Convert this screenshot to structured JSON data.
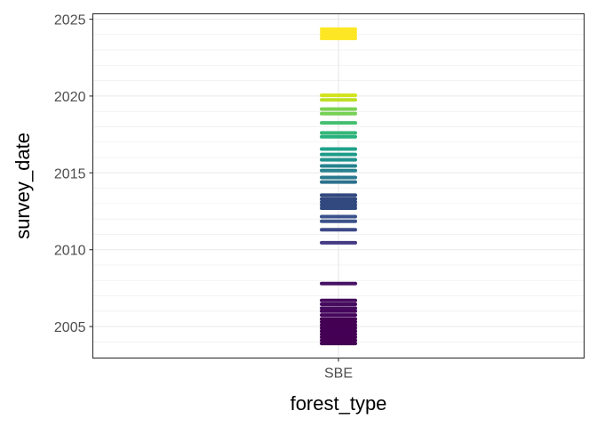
{
  "chart_data": {
    "type": "scatter",
    "title": "",
    "xlabel": "forest_type",
    "ylabel": "survey_date",
    "categories": [
      "SBE"
    ],
    "yticks": [
      2005,
      2010,
      2015,
      2020,
      2025
    ],
    "ylim": [
      2002.95,
      2025.35
    ],
    "grid": true,
    "legend": "none",
    "colormap": "viridis",
    "points": [
      {
        "x": "SBE",
        "y": 2003.9,
        "color": "#440154"
      },
      {
        "x": "SBE",
        "y": 2004.1,
        "color": "#440154"
      },
      {
        "x": "SBE",
        "y": 2004.3,
        "color": "#440154"
      },
      {
        "x": "SBE",
        "y": 2004.5,
        "color": "#440154"
      },
      {
        "x": "SBE",
        "y": 2004.7,
        "color": "#440154"
      },
      {
        "x": "SBE",
        "y": 2004.9,
        "color": "#440154"
      },
      {
        "x": "SBE",
        "y": 2005.1,
        "color": "#440154"
      },
      {
        "x": "SBE",
        "y": 2005.3,
        "color": "#440154"
      },
      {
        "x": "SBE",
        "y": 2005.5,
        "color": "#440154"
      },
      {
        "x": "SBE",
        "y": 2005.75,
        "color": "#45075c"
      },
      {
        "x": "SBE",
        "y": 2006.0,
        "color": "#45075c"
      },
      {
        "x": "SBE",
        "y": 2006.2,
        "color": "#460b5e"
      },
      {
        "x": "SBE",
        "y": 2006.45,
        "color": "#460b5e"
      },
      {
        "x": "SBE",
        "y": 2006.7,
        "color": "#460b5e"
      },
      {
        "x": "SBE",
        "y": 2007.8,
        "color": "#471164"
      },
      {
        "x": "SBE",
        "y": 2010.45,
        "color": "#433a83"
      },
      {
        "x": "SBE",
        "y": 2011.3,
        "color": "#3e4989"
      },
      {
        "x": "SBE",
        "y": 2011.85,
        "color": "#3b528b"
      },
      {
        "x": "SBE",
        "y": 2012.15,
        "color": "#3b528b"
      },
      {
        "x": "SBE",
        "y": 2012.7,
        "color": "#31497e"
      },
      {
        "x": "SBE",
        "y": 2012.9,
        "color": "#31497e"
      },
      {
        "x": "SBE",
        "y": 2013.1,
        "color": "#31497e"
      },
      {
        "x": "SBE",
        "y": 2013.3,
        "color": "#31497e"
      },
      {
        "x": "SBE",
        "y": 2013.55,
        "color": "#31497e"
      },
      {
        "x": "SBE",
        "y": 2014.4,
        "color": "#2c718e"
      },
      {
        "x": "SBE",
        "y": 2014.7,
        "color": "#2a788e"
      },
      {
        "x": "SBE",
        "y": 2015.15,
        "color": "#26828e"
      },
      {
        "x": "SBE",
        "y": 2015.45,
        "color": "#26828e"
      },
      {
        "x": "SBE",
        "y": 2015.85,
        "color": "#21918c"
      },
      {
        "x": "SBE",
        "y": 2016.2,
        "color": "#1f9a8a"
      },
      {
        "x": "SBE",
        "y": 2016.55,
        "color": "#1fa188"
      },
      {
        "x": "SBE",
        "y": 2017.35,
        "color": "#2ab07f"
      },
      {
        "x": "SBE",
        "y": 2017.6,
        "color": "#35b779"
      },
      {
        "x": "SBE",
        "y": 2018.25,
        "color": "#44bf70"
      },
      {
        "x": "SBE",
        "y": 2018.85,
        "color": "#75d054"
      },
      {
        "x": "SBE",
        "y": 2019.15,
        "color": "#7ad151"
      },
      {
        "x": "SBE",
        "y": 2019.75,
        "color": "#bddf26"
      },
      {
        "x": "SBE",
        "y": 2020.05,
        "color": "#d2e21b"
      },
      {
        "x": "SBE",
        "y": 2023.75,
        "color": "#fde725"
      },
      {
        "x": "SBE",
        "y": 2023.95,
        "color": "#fde725"
      },
      {
        "x": "SBE",
        "y": 2024.15,
        "color": "#fde725"
      },
      {
        "x": "SBE",
        "y": 2024.35,
        "color": "#fde725"
      }
    ]
  }
}
